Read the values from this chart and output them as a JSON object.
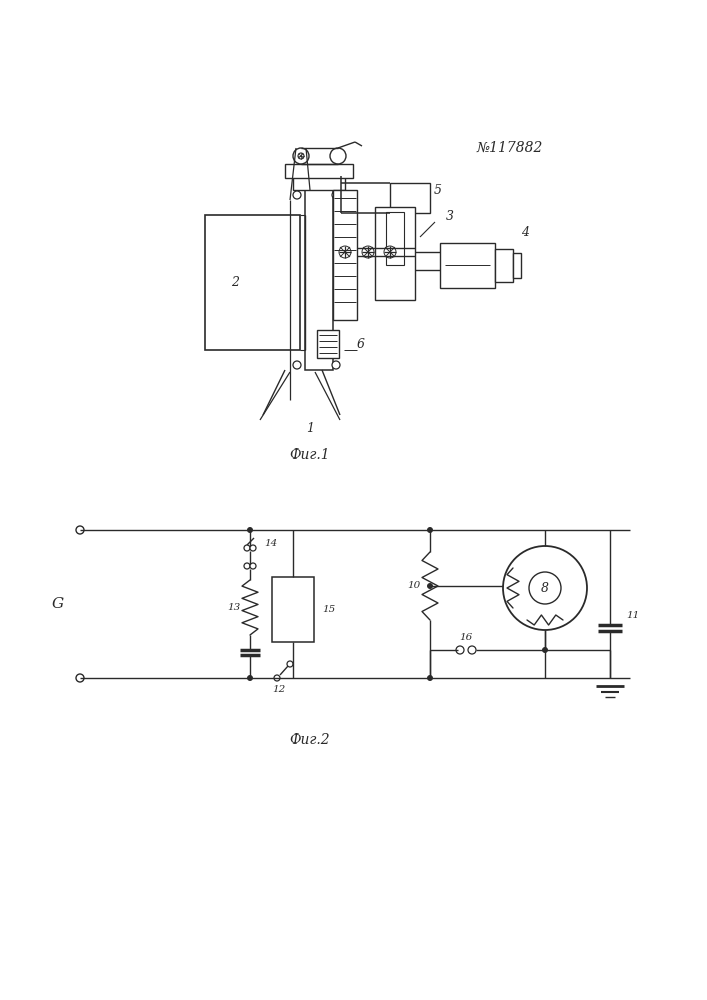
{
  "title": "№117882",
  "fig1_caption": "Фиг.1",
  "fig2_caption": "Фиг.2",
  "bg_color": "#ffffff",
  "line_color": "#2a2a2a"
}
